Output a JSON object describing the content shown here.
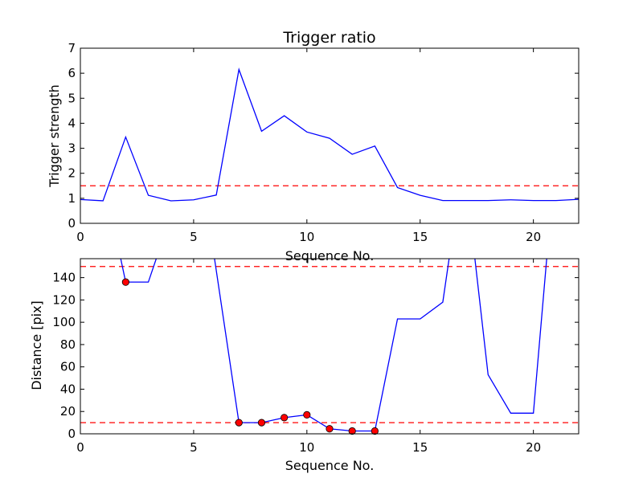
{
  "chart_data": [
    {
      "type": "line",
      "title": "Trigger ratio",
      "xlabel": "Sequence No.",
      "ylabel": "Trigger strength",
      "xlim": [
        0,
        22
      ],
      "ylim": [
        0,
        7
      ],
      "xticks": [
        0,
        5,
        10,
        15,
        20
      ],
      "yticks": [
        0,
        1,
        2,
        3,
        4,
        5,
        6,
        7
      ],
      "grid": false,
      "series": [
        {
          "color": "#0000ff",
          "x": [
            0,
            1,
            2,
            3,
            4,
            5,
            6,
            7,
            8,
            9,
            10,
            11,
            12,
            13,
            14,
            15,
            16,
            17,
            18,
            19,
            20,
            21,
            22
          ],
          "y": [
            0.95,
            0.9,
            3.45,
            1.12,
            0.9,
            0.94,
            1.13,
            6.15,
            3.68,
            4.3,
            3.65,
            3.4,
            2.76,
            3.09,
            1.43,
            1.12,
            0.91,
            0.91,
            0.91,
            0.94,
            0.91,
            0.91,
            0.96
          ]
        }
      ],
      "hlines": [
        {
          "y": 1.5,
          "color": "#ff0000",
          "style": "dashed"
        }
      ]
    },
    {
      "type": "line",
      "title": "",
      "xlabel": "Sequence No.",
      "ylabel": "Distance [pix]",
      "xlim": [
        0,
        22
      ],
      "ylim": [
        0,
        157
      ],
      "xticks": [
        0,
        5,
        10,
        15,
        20
      ],
      "yticks": [
        0,
        20,
        40,
        60,
        80,
        100,
        120,
        140
      ],
      "grid": false,
      "series": [
        {
          "color": "#0000ff",
          "x": [
            1.75,
            2,
            3,
            3.4,
            5.9,
            7,
            8,
            9,
            10,
            11,
            12,
            13,
            14,
            15,
            16,
            16.3,
            17.4,
            18,
            19,
            20,
            20.6
          ],
          "y": [
            160,
            136,
            136,
            160,
            160,
            10,
            10,
            14.5,
            17,
            4.5,
            2.5,
            2.5,
            103,
            103,
            118,
            160,
            160,
            53,
            18.5,
            18.5,
            160
          ]
        }
      ],
      "markers": {
        "color": "#ff0000",
        "x": [
          2,
          7,
          8,
          9,
          10,
          11,
          12,
          13
        ],
        "y": [
          136,
          10,
          10,
          14.5,
          17,
          4.5,
          2.5,
          2.5
        ]
      },
      "hlines": [
        {
          "y": 150,
          "color": "#ff0000",
          "style": "dashed"
        },
        {
          "y": 10,
          "color": "#ff0000",
          "style": "dashed"
        }
      ]
    }
  ]
}
